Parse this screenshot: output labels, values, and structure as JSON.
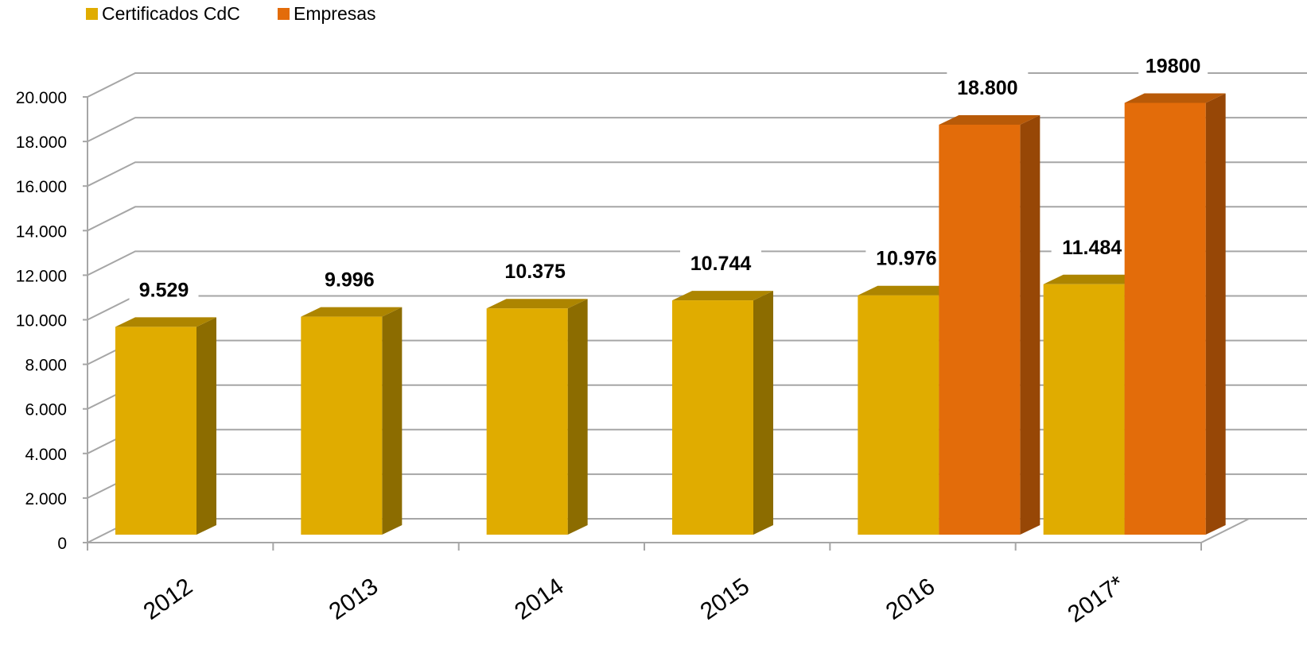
{
  "chart_data": {
    "type": "bar",
    "categories": [
      "2012",
      "2013",
      "2014",
      "2015",
      "2016",
      "2017*"
    ],
    "series": [
      {
        "name": "Certificados CdC",
        "values": [
          9529,
          9996,
          10375,
          10744,
          10976,
          11484
        ],
        "labels": [
          "9.529",
          "9.996",
          "10.375",
          "10.744",
          "10.976",
          "11.484"
        ]
      },
      {
        "name": "Empresas",
        "values": [
          null,
          null,
          null,
          null,
          18800,
          19800
        ],
        "labels": [
          "",
          "",
          "",
          "",
          "18.800",
          "19800"
        ]
      }
    ],
    "ylim": [
      0,
      20000
    ],
    "yticks": [
      0,
      2000,
      4000,
      6000,
      8000,
      10000,
      12000,
      14000,
      16000,
      18000,
      20000
    ],
    "ytick_labels": [
      "0",
      "2.000",
      "4.000",
      "6.000",
      "8.000",
      "10.000",
      "12.000",
      "14.000",
      "16.000",
      "18.000",
      "20.000"
    ],
    "title": "",
    "xlabel": "",
    "ylabel": "",
    "grid": true,
    "style": "3d-columns",
    "legend_position": "top-left"
  },
  "colors": {
    "series": [
      {
        "front": "#E0AC00",
        "side": "#8C6C00",
        "top": "#AD8500"
      },
      {
        "front": "#E36C0A",
        "side": "#974706",
        "top": "#B85A08"
      }
    ],
    "grid": "#A6A6A6",
    "text": "#000000"
  }
}
